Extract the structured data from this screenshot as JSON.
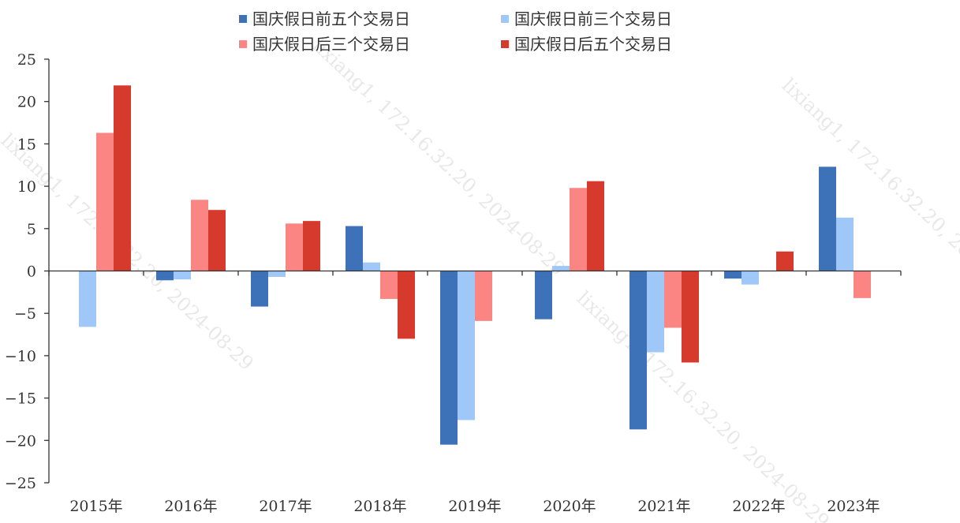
{
  "chart_data": {
    "type": "bar",
    "categories": [
      "2015年",
      "2016年",
      "2017年",
      "2018年",
      "2019年",
      "2020年",
      "2021年",
      "2022年",
      "2023年"
    ],
    "series": [
      {
        "name": "国庆假日前五个交易日",
        "color": "#3d72b8",
        "values": [
          0,
          -1.1,
          -4.2,
          5.3,
          -20.5,
          -5.7,
          -18.7,
          -0.9,
          12.3
        ]
      },
      {
        "name": "国庆假日前三个交易日",
        "color": "#9fc8f8",
        "values": [
          -6.6,
          -1.0,
          -0.7,
          1.0,
          -17.6,
          0.6,
          -9.6,
          -1.6,
          6.3
        ]
      },
      {
        "name": "国庆假日后三个交易日",
        "color": "#fb8583",
        "values": [
          16.3,
          8.4,
          5.6,
          -3.3,
          -5.9,
          9.8,
          -6.7,
          0,
          -3.2
        ]
      },
      {
        "name": "国庆假日后五个交易日",
        "color": "#d63a2c",
        "values": [
          21.9,
          7.2,
          5.9,
          -8.0,
          0,
          10.6,
          -10.8,
          2.3,
          0
        ]
      }
    ],
    "ylim": [
      -25,
      25
    ],
    "yticks": [
      25,
      20,
      15,
      10,
      5,
      0,
      -5,
      -10,
      -15,
      -20,
      -25
    ],
    "legend_position": "top",
    "grid": false,
    "watermark": "lixiang1, 172.16.32.20, 2024-08-29"
  }
}
